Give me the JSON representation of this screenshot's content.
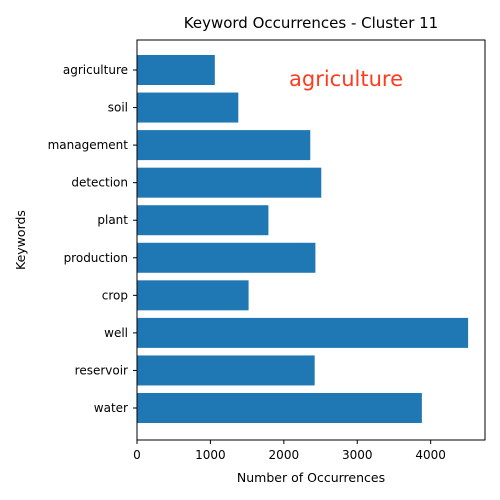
{
  "chart_data": {
    "type": "bar",
    "orientation": "horizontal",
    "title": "Keyword Occurrences - Cluster 11",
    "xlabel": "Number of Occurrences",
    "ylabel": "Keywords",
    "categories": [
      "agriculture",
      "soil",
      "management",
      "detection",
      "plant",
      "production",
      "crop",
      "well",
      "reservoir",
      "water"
    ],
    "values": [
      1060,
      1380,
      2360,
      2510,
      1790,
      2430,
      1520,
      4510,
      2420,
      3880
    ],
    "xlim": [
      0,
      4740
    ],
    "xticks": [
      "0",
      "1000",
      "2000",
      "3000",
      "4000"
    ],
    "bar_color": "#1f77b4",
    "grid": false,
    "annotation": {
      "text": "agriculture",
      "color": "#ff3b1f"
    }
  }
}
